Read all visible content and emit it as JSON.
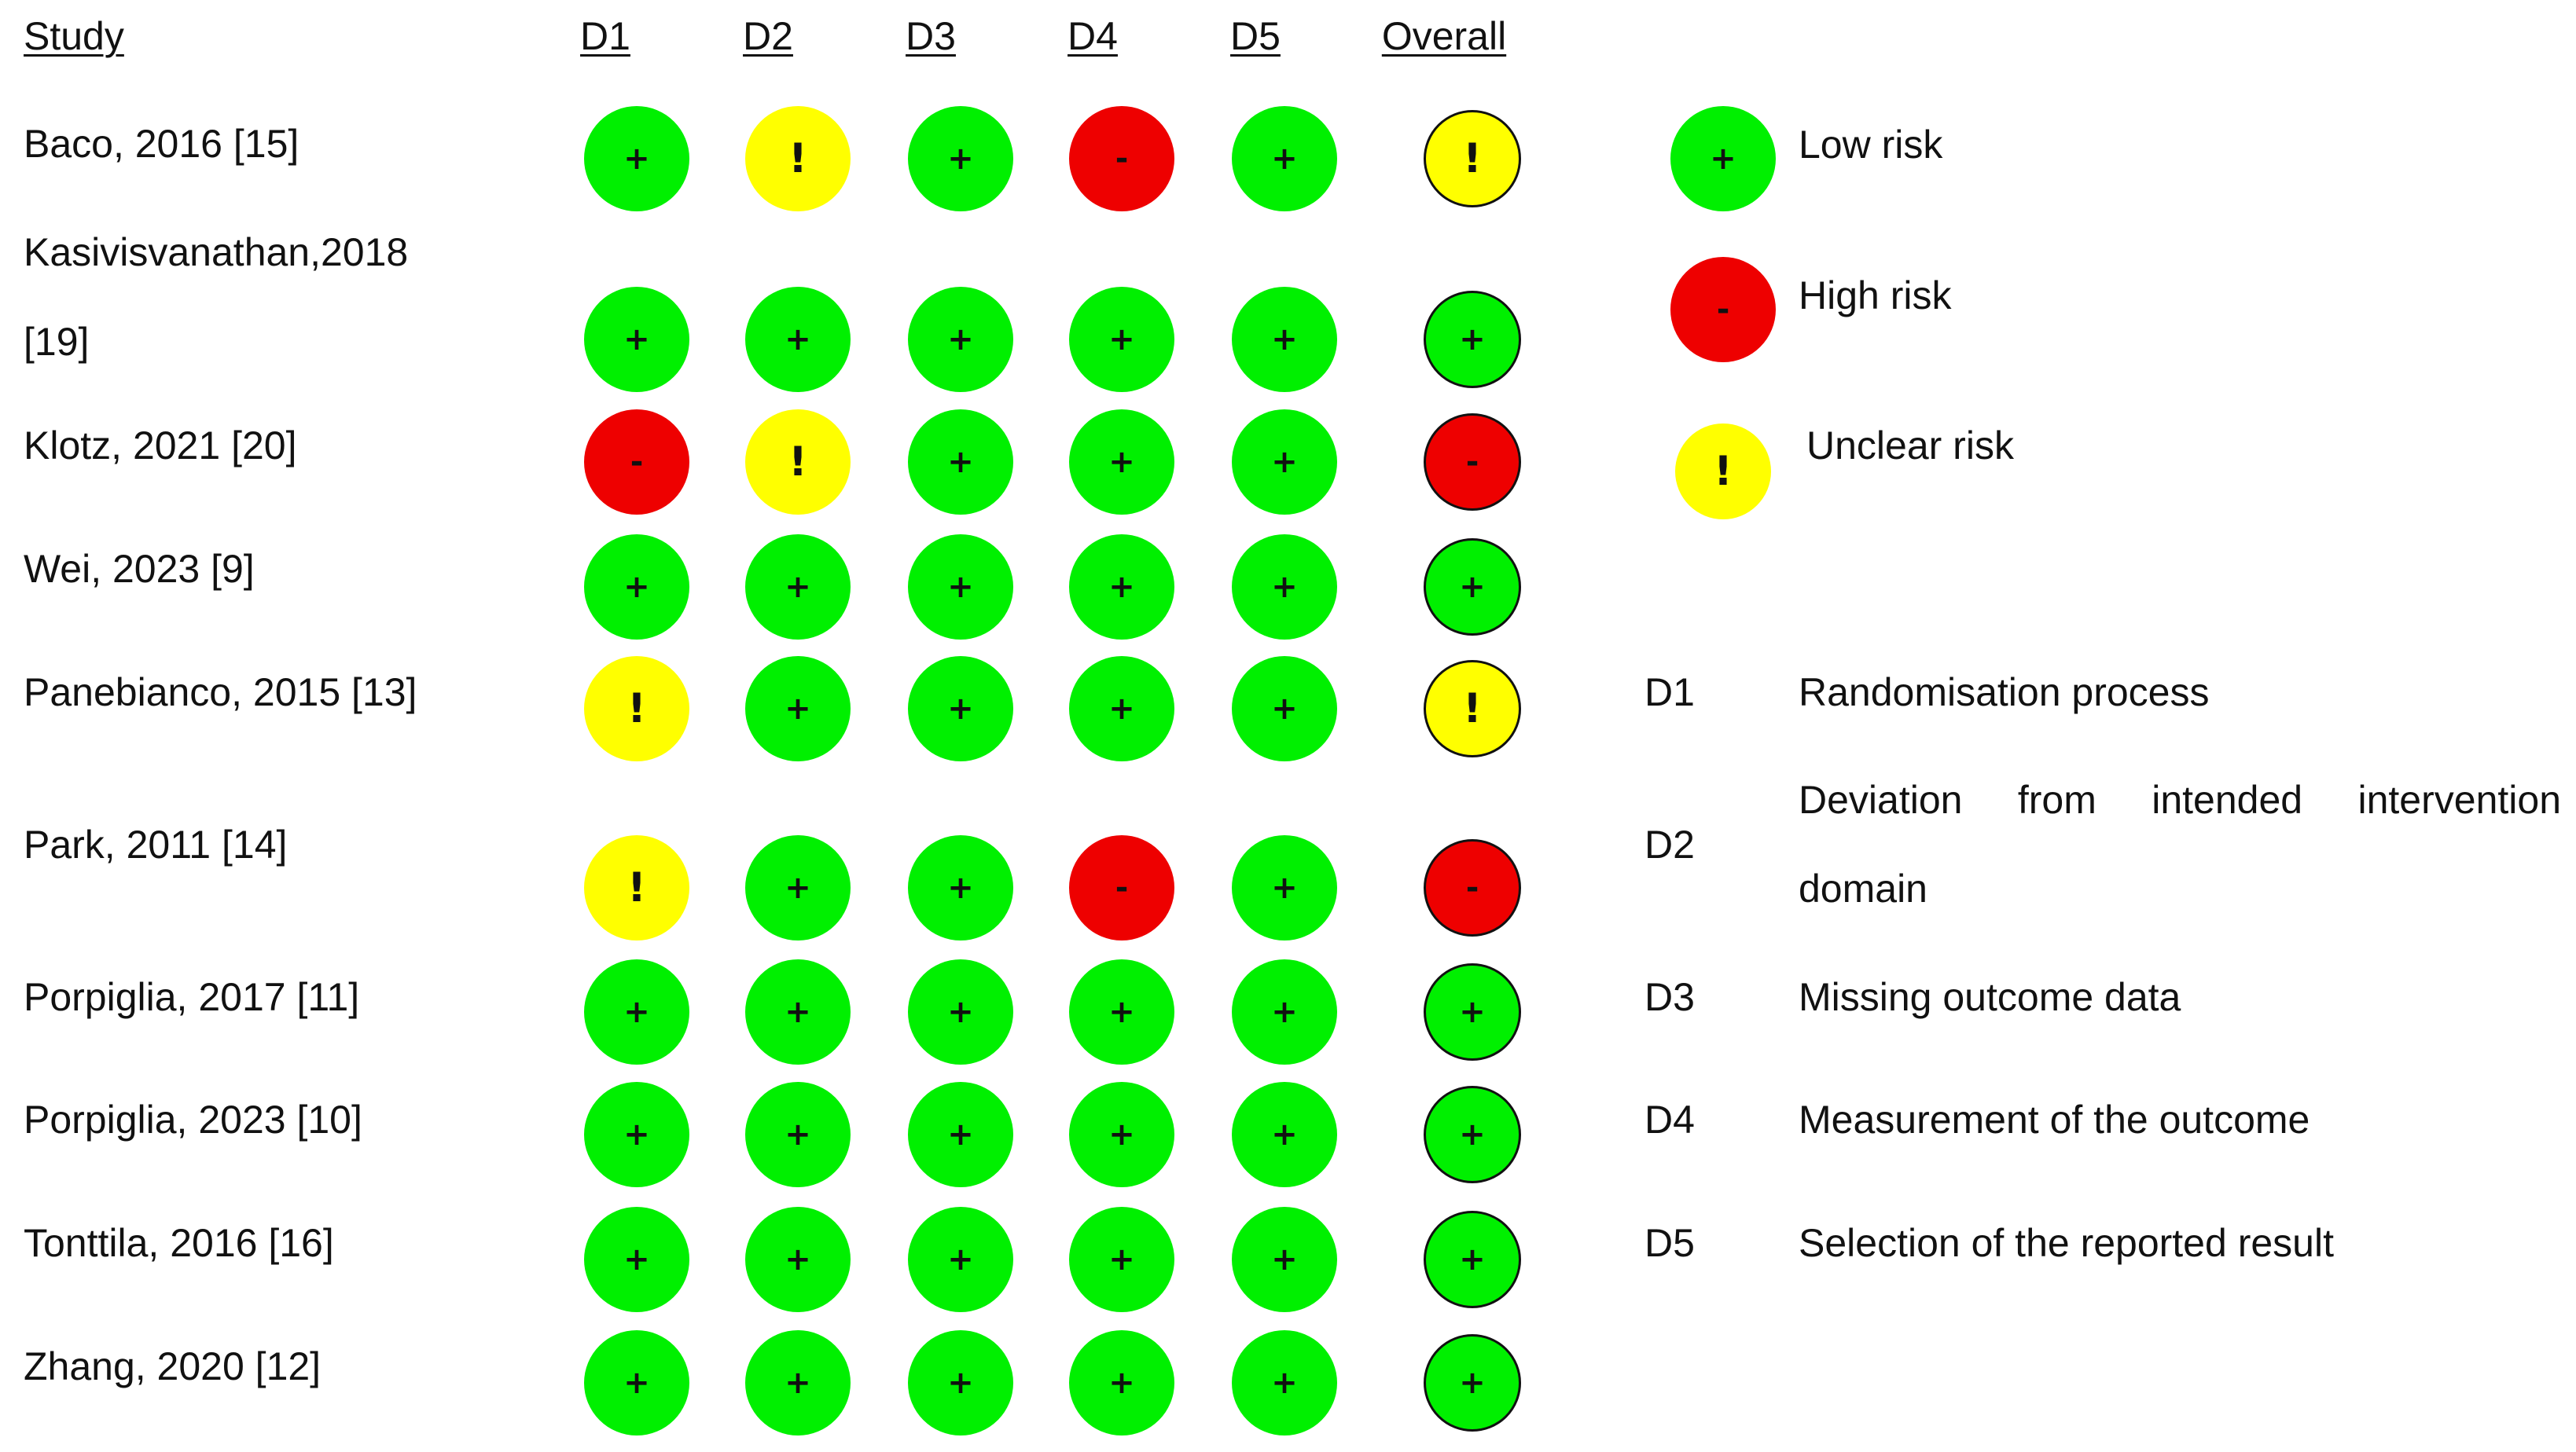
{
  "headers": {
    "study": "Study",
    "domains": [
      "D1",
      "D2",
      "D3",
      "D4",
      "D5"
    ],
    "overall": "Overall"
  },
  "colors": {
    "low": "#00f000",
    "high": "#ee0000",
    "unclear": "#ffff00"
  },
  "symbols": {
    "low": "+",
    "high": "-",
    "unclear": "!"
  },
  "studies": [
    {
      "name": "Baco, 2016 [15]",
      "d": [
        "low",
        "unclear",
        "low",
        "high",
        "low"
      ],
      "overall": "unclear"
    },
    {
      "name_line1": "Kasivisvanathan,2018",
      "name_line2": "[19]",
      "d": [
        "low",
        "low",
        "low",
        "low",
        "low"
      ],
      "overall": "low"
    },
    {
      "name": "Klotz, 2021 [20]",
      "d": [
        "high",
        "unclear",
        "low",
        "low",
        "low"
      ],
      "overall": "high"
    },
    {
      "name": "Wei, 2023 [9]",
      "d": [
        "low",
        "low",
        "low",
        "low",
        "low"
      ],
      "overall": "low"
    },
    {
      "name": "Panebianco, 2015 [13]",
      "d": [
        "unclear",
        "low",
        "low",
        "low",
        "low"
      ],
      "overall": "unclear"
    },
    {
      "name": "Park, 2011 [14]",
      "d": [
        "unclear",
        "low",
        "low",
        "high",
        "low"
      ],
      "overall": "high"
    },
    {
      "name": "Porpiglia, 2017 [11]",
      "d": [
        "low",
        "low",
        "low",
        "low",
        "low"
      ],
      "overall": "low"
    },
    {
      "name": "Porpiglia, 2023 [10]",
      "d": [
        "low",
        "low",
        "low",
        "low",
        "low"
      ],
      "overall": "low"
    },
    {
      "name": "Tonttila, 2016 [16]",
      "d": [
        "low",
        "low",
        "low",
        "low",
        "low"
      ],
      "overall": "low"
    },
    {
      "name": "Zhang, 2020 [12]",
      "d": [
        "low",
        "low",
        "low",
        "low",
        "low"
      ],
      "overall": "low"
    }
  ],
  "legend": {
    "risk": [
      {
        "level": "low",
        "label": "Low risk"
      },
      {
        "level": "high",
        "label": "High risk"
      },
      {
        "level": "unclear",
        "label": "Unclear risk"
      }
    ],
    "domains": [
      {
        "code": "D1",
        "text": "Randomisation process"
      },
      {
        "code": "D2",
        "text": "Deviation from intended intervention domain"
      },
      {
        "code": "D3",
        "text": "Missing outcome data"
      },
      {
        "code": "D4",
        "text": "Measurement of the outcome"
      },
      {
        "code": "D5",
        "text": "Selection of the reported result"
      }
    ]
  }
}
